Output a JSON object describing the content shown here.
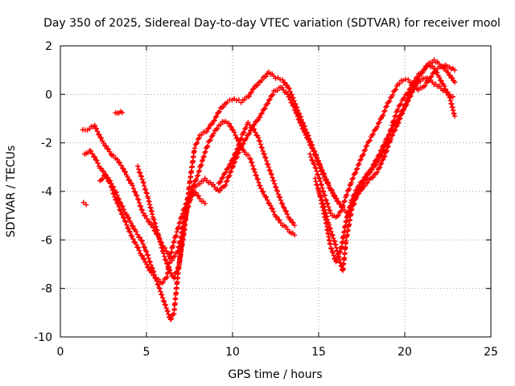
{
  "chart_data": {
    "type": "scatter",
    "title": "Day 350 of 2025, Sidereal Day-to-day VTEC variation (SDTVAR) for receiver mool",
    "xlabel": "GPS time / hours",
    "ylabel": "SDTVAR / TECUs",
    "xlim": [
      0,
      25
    ],
    "ylim": [
      -10,
      2
    ],
    "xticks": [
      0,
      5,
      10,
      15,
      20,
      25
    ],
    "yticks": [
      -10,
      -8,
      -6,
      -4,
      -2,
      0,
      2
    ],
    "xtick_labels": [
      "0",
      "5",
      "10",
      "15",
      "20",
      "25"
    ],
    "ytick_labels": [
      "-10",
      "-8",
      "-6",
      "-4",
      "-2",
      "0",
      "2"
    ],
    "grid": true,
    "marker": "+",
    "color": "#ff0000",
    "series": [
      {
        "name": "track-1",
        "points": [
          [
            1.3,
            -1.5
          ],
          [
            1.7,
            -1.4
          ],
          [
            2.0,
            -1.3
          ],
          [
            2.2,
            -1.6
          ],
          [
            2.5,
            -2.0
          ],
          [
            2.8,
            -2.3
          ],
          [
            3.0,
            -2.5
          ],
          [
            3.3,
            -2.7
          ],
          [
            3.6,
            -3.0
          ],
          [
            3.9,
            -3.4
          ],
          [
            4.2,
            -3.8
          ],
          [
            4.5,
            -4.3
          ],
          [
            4.8,
            -4.9
          ],
          [
            5.1,
            -5.2
          ],
          [
            5.4,
            -5.5
          ],
          [
            5.7,
            -5.9
          ],
          [
            6.0,
            -6.3
          ],
          [
            6.3,
            -6.6
          ],
          [
            6.5,
            -6.8
          ],
          [
            6.8,
            -6.5
          ],
          [
            7.1,
            -5.6
          ],
          [
            7.4,
            -4.6
          ],
          [
            7.7,
            -3.8
          ],
          [
            8.0,
            -3.3
          ],
          [
            8.3,
            -2.6
          ],
          [
            8.6,
            -2.0
          ],
          [
            8.9,
            -1.6
          ],
          [
            9.2,
            -1.3
          ],
          [
            9.5,
            -1.1
          ],
          [
            9.8,
            -1.2
          ],
          [
            10.1,
            -1.6
          ],
          [
            10.4,
            -2.0
          ],
          [
            10.7,
            -2.4
          ],
          [
            11.0,
            -2.6
          ],
          [
            11.3,
            -3.2
          ],
          [
            11.6,
            -3.8
          ],
          [
            11.9,
            -4.2
          ],
          [
            12.2,
            -4.6
          ],
          [
            12.5,
            -5.0
          ],
          [
            12.8,
            -5.3
          ],
          [
            13.1,
            -5.5
          ],
          [
            13.4,
            -5.7
          ],
          [
            13.6,
            -5.8
          ]
        ]
      },
      {
        "name": "track-2",
        "points": [
          [
            1.4,
            -2.5
          ],
          [
            1.7,
            -2.3
          ],
          [
            2.0,
            -2.6
          ],
          [
            2.3,
            -3.0
          ],
          [
            2.6,
            -3.3
          ],
          [
            2.9,
            -3.6
          ],
          [
            3.2,
            -4.0
          ],
          [
            3.5,
            -4.5
          ],
          [
            3.8,
            -4.9
          ],
          [
            4.1,
            -5.3
          ],
          [
            4.4,
            -5.7
          ],
          [
            4.7,
            -6.0
          ],
          [
            5.0,
            -6.5
          ],
          [
            5.3,
            -7.1
          ],
          [
            5.6,
            -7.7
          ],
          [
            5.9,
            -8.3
          ],
          [
            6.2,
            -8.9
          ],
          [
            6.4,
            -9.3
          ],
          [
            6.6,
            -9.0
          ],
          [
            6.8,
            -7.6
          ],
          [
            7.0,
            -6.4
          ],
          [
            7.2,
            -5.2
          ],
          [
            7.5,
            -4.4
          ],
          [
            7.8,
            -4.0
          ],
          [
            8.1,
            -4.3
          ],
          [
            8.4,
            -4.5
          ]
        ]
      },
      {
        "name": "track-3",
        "points": [
          [
            2.3,
            -3.6
          ],
          [
            2.6,
            -3.3
          ],
          [
            2.9,
            -3.7
          ],
          [
            3.2,
            -4.3
          ],
          [
            3.5,
            -4.8
          ],
          [
            3.8,
            -5.3
          ],
          [
            4.1,
            -5.8
          ],
          [
            4.4,
            -6.2
          ],
          [
            4.7,
            -6.6
          ],
          [
            5.0,
            -7.0
          ],
          [
            5.3,
            -7.4
          ],
          [
            5.6,
            -7.6
          ],
          [
            5.9,
            -7.8
          ],
          [
            6.2,
            -7.5
          ],
          [
            6.5,
            -6.3
          ],
          [
            6.8,
            -5.6
          ],
          [
            7.1,
            -4.9
          ],
          [
            7.4,
            -4.3
          ],
          [
            7.7,
            -3.9
          ],
          [
            8.0,
            -3.7
          ],
          [
            8.4,
            -3.5
          ],
          [
            8.8,
            -3.7
          ],
          [
            9.2,
            -4.0
          ],
          [
            9.6,
            -3.7
          ],
          [
            10.0,
            -3.0
          ],
          [
            10.4,
            -2.3
          ],
          [
            10.8,
            -1.8
          ],
          [
            11.2,
            -1.3
          ],
          [
            11.6,
            -0.9
          ],
          [
            12.0,
            -0.4
          ],
          [
            12.4,
            0.1
          ],
          [
            12.8,
            0.3
          ],
          [
            13.2,
            0.0
          ],
          [
            13.6,
            -0.6
          ],
          [
            14.0,
            -1.3
          ],
          [
            14.4,
            -1.9
          ],
          [
            14.8,
            -2.5
          ],
          [
            15.2,
            -3.2
          ],
          [
            15.6,
            -3.8
          ],
          [
            16.0,
            -4.3
          ],
          [
            16.4,
            -4.7
          ],
          [
            16.7,
            -4.9
          ]
        ]
      },
      {
        "name": "track-4",
        "points": [
          [
            4.5,
            -3.0
          ],
          [
            4.8,
            -3.6
          ],
          [
            5.1,
            -4.3
          ],
          [
            5.4,
            -5.1
          ],
          [
            5.7,
            -5.8
          ],
          [
            6.0,
            -6.6
          ],
          [
            6.3,
            -7.2
          ],
          [
            6.6,
            -7.6
          ],
          [
            6.9,
            -7.0
          ],
          [
            7.2,
            -5.6
          ],
          [
            7.5,
            -3.7
          ],
          [
            7.8,
            -2.2
          ],
          [
            8.1,
            -1.7
          ],
          [
            8.5,
            -1.5
          ],
          [
            8.9,
            -1.1
          ],
          [
            9.3,
            -0.6
          ],
          [
            9.7,
            -0.3
          ],
          [
            10.1,
            -0.2
          ],
          [
            10.5,
            -0.3
          ],
          [
            10.9,
            -0.1
          ],
          [
            11.3,
            0.3
          ],
          [
            11.7,
            0.6
          ],
          [
            12.1,
            0.9
          ],
          [
            12.5,
            0.7
          ],
          [
            12.9,
            0.6
          ],
          [
            13.3,
            0.2
          ],
          [
            13.7,
            -0.5
          ],
          [
            14.1,
            -1.2
          ],
          [
            14.5,
            -1.9
          ],
          [
            14.9,
            -2.6
          ],
          [
            15.3,
            -3.3
          ],
          [
            15.7,
            -3.9
          ],
          [
            16.1,
            -4.4
          ]
        ]
      },
      {
        "name": "track-5",
        "points": [
          [
            3.2,
            -0.8
          ],
          [
            3.4,
            -0.75
          ],
          [
            3.6,
            -0.75
          ]
        ]
      },
      {
        "name": "track-6",
        "points": [
          [
            1.35,
            -4.5
          ],
          [
            1.5,
            -4.55
          ]
        ]
      },
      {
        "name": "track-7",
        "points": [
          [
            9.2,
            -3.7
          ],
          [
            9.6,
            -3.2
          ],
          [
            10.0,
            -2.7
          ],
          [
            10.3,
            -2.2
          ],
          [
            10.6,
            -1.6
          ],
          [
            10.9,
            -1.2
          ],
          [
            11.2,
            -1.4
          ],
          [
            11.5,
            -1.8
          ],
          [
            11.8,
            -2.4
          ],
          [
            12.1,
            -3.0
          ],
          [
            12.4,
            -3.6
          ],
          [
            12.7,
            -4.2
          ],
          [
            13.0,
            -4.7
          ],
          [
            13.3,
            -5.1
          ],
          [
            13.6,
            -5.4
          ]
        ]
      },
      {
        "name": "track-8",
        "points": [
          [
            14.8,
            -3.5
          ],
          [
            15.1,
            -4.2
          ],
          [
            15.4,
            -5.2
          ],
          [
            15.7,
            -6.3
          ],
          [
            16.0,
            -6.9
          ],
          [
            16.3,
            -6.4
          ],
          [
            16.6,
            -5.2
          ],
          [
            16.9,
            -4.4
          ],
          [
            17.2,
            -3.9
          ],
          [
            17.5,
            -3.6
          ],
          [
            17.8,
            -3.3
          ],
          [
            18.1,
            -3.1
          ],
          [
            18.4,
            -2.8
          ],
          [
            18.7,
            -2.4
          ],
          [
            19.0,
            -1.9
          ],
          [
            19.3,
            -1.2
          ],
          [
            19.6,
            -0.6
          ],
          [
            19.9,
            -0.2
          ],
          [
            20.2,
            0.1
          ],
          [
            20.5,
            0.5
          ],
          [
            20.8,
            0.8
          ],
          [
            21.1,
            1.0
          ],
          [
            21.4,
            1.2
          ],
          [
            21.7,
            1.1
          ],
          [
            22.0,
            0.7
          ],
          [
            22.3,
            0.3
          ],
          [
            22.6,
            -0.1
          ],
          [
            22.9,
            -0.9
          ]
        ]
      },
      {
        "name": "track-9",
        "points": [
          [
            15.0,
            -4.0
          ],
          [
            15.3,
            -4.6
          ],
          [
            15.6,
            -5.4
          ],
          [
            15.9,
            -6.0
          ],
          [
            16.2,
            -6.8
          ],
          [
            16.4,
            -7.3
          ],
          [
            16.6,
            -6.0
          ],
          [
            16.9,
            -4.8
          ],
          [
            17.2,
            -4.2
          ],
          [
            17.6,
            -3.8
          ],
          [
            18.0,
            -3.5
          ],
          [
            18.4,
            -3.2
          ],
          [
            18.8,
            -2.6
          ],
          [
            19.2,
            -1.8
          ],
          [
            19.6,
            -1.2
          ],
          [
            20.0,
            -0.5
          ],
          [
            20.4,
            0.2
          ],
          [
            20.8,
            0.5
          ],
          [
            21.2,
            0.7
          ],
          [
            21.6,
            0.5
          ],
          [
            22.0,
            0.3
          ],
          [
            22.4,
            0.1
          ],
          [
            22.8,
            -0.1
          ]
        ]
      },
      {
        "name": "track-10",
        "points": [
          [
            14.5,
            -2.5
          ],
          [
            14.8,
            -3.0
          ],
          [
            15.1,
            -3.6
          ],
          [
            15.4,
            -4.3
          ],
          [
            15.7,
            -4.9
          ],
          [
            16.0,
            -5.1
          ],
          [
            16.3,
            -4.8
          ],
          [
            16.6,
            -4.2
          ],
          [
            16.9,
            -3.6
          ],
          [
            17.2,
            -3.1
          ],
          [
            17.5,
            -2.6
          ],
          [
            17.8,
            -2.1
          ],
          [
            18.1,
            -1.7
          ],
          [
            18.4,
            -1.3
          ],
          [
            18.7,
            -0.9
          ],
          [
            19.0,
            -0.4
          ],
          [
            19.3,
            0.0
          ],
          [
            19.6,
            0.4
          ],
          [
            19.9,
            0.6
          ],
          [
            20.2,
            0.6
          ],
          [
            20.5,
            0.4
          ],
          [
            20.8,
            0.2
          ],
          [
            21.1,
            0.3
          ],
          [
            21.4,
            0.6
          ],
          [
            21.7,
            0.9
          ],
          [
            22.0,
            1.1
          ],
          [
            22.3,
            1.2
          ],
          [
            22.6,
            1.1
          ],
          [
            22.9,
            1.0
          ]
        ]
      },
      {
        "name": "track-11",
        "points": [
          [
            17.0,
            -4.4
          ],
          [
            17.3,
            -4.0
          ],
          [
            17.7,
            -3.5
          ],
          [
            18.1,
            -3.0
          ],
          [
            18.5,
            -2.5
          ],
          [
            18.9,
            -1.9
          ],
          [
            19.3,
            -1.4
          ],
          [
            19.7,
            -0.9
          ],
          [
            20.1,
            -0.4
          ],
          [
            20.5,
            0.2
          ],
          [
            20.9,
            0.8
          ],
          [
            21.3,
            1.2
          ],
          [
            21.7,
            1.4
          ],
          [
            22.1,
            1.2
          ],
          [
            22.5,
            0.9
          ],
          [
            22.9,
            0.5
          ]
        ]
      }
    ]
  }
}
